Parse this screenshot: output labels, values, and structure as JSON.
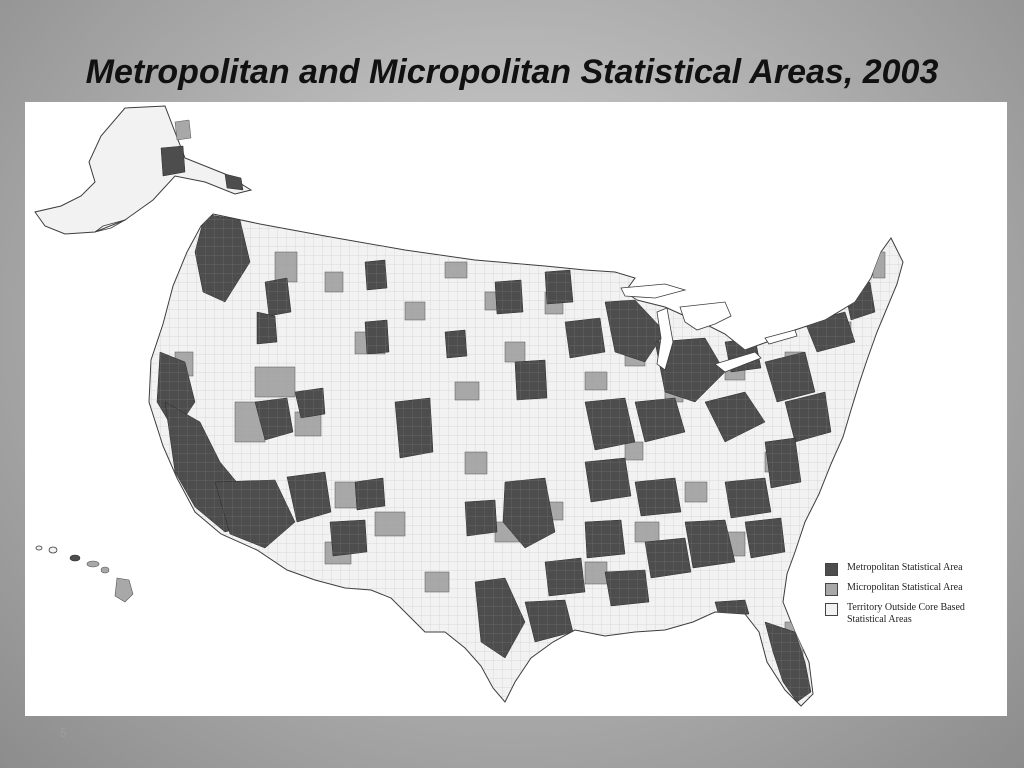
{
  "slide": {
    "title": "Metropolitan and Micropolitan Statistical Areas, 2003",
    "page_number": "5"
  },
  "map": {
    "legend": [
      {
        "label": "Metropolitan Statistical Area",
        "color": "#4d4d4d"
      },
      {
        "label": "Micropolitan Statistical Area",
        "color": "#a8a8a8"
      },
      {
        "label": "Territory Outside Core Based Statistical Areas",
        "color": "#f2f2f2"
      }
    ]
  }
}
